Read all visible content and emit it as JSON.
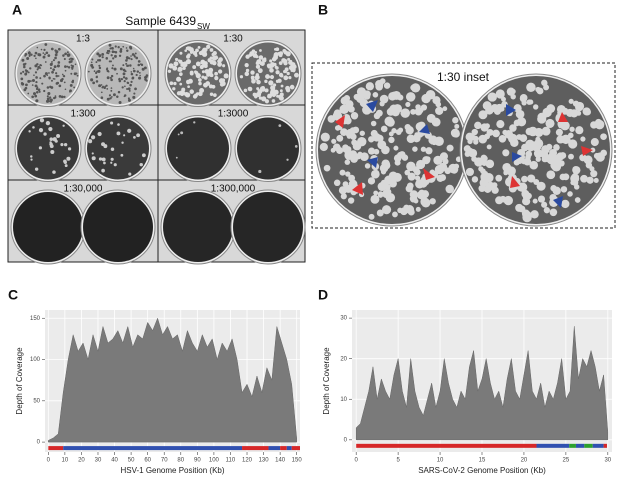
{
  "panel_labels": {
    "a": "A",
    "b": "B",
    "c": "C",
    "d": "D"
  },
  "panel_a": {
    "title": "Sample 6439",
    "title_subscript": "SW",
    "dilutions": [
      "1:3",
      "1:30",
      "1:300",
      "1:3000",
      "1:30,000",
      "1:300,000"
    ]
  },
  "panel_b": {
    "title": "1:30 inset"
  },
  "chart_data": [
    {
      "type": "area",
      "xlabel": "HSV-1 Genome Position (Kb)",
      "ylabel": "Depth of Coverage",
      "color": "#7a7a7a",
      "x": [
        0,
        3,
        6,
        9,
        12,
        15,
        18,
        21,
        24,
        27,
        30,
        33,
        36,
        39,
        42,
        45,
        48,
        51,
        54,
        57,
        60,
        63,
        66,
        69,
        72,
        75,
        78,
        81,
        84,
        87,
        90,
        93,
        96,
        99,
        102,
        105,
        108,
        111,
        114,
        117,
        120,
        123,
        126,
        129,
        132,
        135,
        138,
        141,
        144,
        147,
        150
      ],
      "values": [
        2,
        5,
        10,
        60,
        100,
        130,
        110,
        120,
        100,
        130,
        110,
        140,
        120,
        125,
        135,
        120,
        140,
        115,
        130,
        125,
        145,
        135,
        150,
        130,
        140,
        125,
        130,
        110,
        135,
        120,
        110,
        130,
        115,
        125,
        100,
        120,
        110,
        125,
        100,
        60,
        70,
        55,
        80,
        60,
        90,
        75,
        140,
        120,
        100,
        70,
        5
      ],
      "segments": [
        {
          "start": 0,
          "end": 9,
          "color": "#d62728"
        },
        {
          "start": 9,
          "end": 117,
          "color": "#3050b0"
        },
        {
          "start": 117,
          "end": 133,
          "color": "#d62728"
        },
        {
          "start": 133,
          "end": 140,
          "color": "#3050b0"
        },
        {
          "start": 140,
          "end": 144,
          "color": "#d62728"
        },
        {
          "start": 144,
          "end": 147,
          "color": "#3050b0"
        },
        {
          "start": 147,
          "end": 152,
          "color": "#d62728"
        }
      ],
      "xlim": [
        -2,
        152
      ],
      "ylim": [
        -12,
        160
      ],
      "xticks": [
        0,
        10,
        20,
        30,
        40,
        50,
        60,
        70,
        80,
        90,
        100,
        110,
        120,
        130,
        140,
        150
      ],
      "yticks": [
        0,
        50,
        100,
        150
      ],
      "grid": true
    },
    {
      "type": "area",
      "xlabel": "SARS-CoV-2 Genome Position (Kb)",
      "ylabel": "Depth of Coverage",
      "color": "#7a7a7a",
      "x": [
        0,
        0.5,
        1,
        1.5,
        2,
        2.5,
        3,
        3.5,
        4,
        4.5,
        5,
        5.5,
        6,
        6.5,
        7,
        7.5,
        8,
        8.5,
        9,
        9.5,
        10,
        10.5,
        11,
        11.5,
        12,
        12.5,
        13,
        13.5,
        14,
        14.5,
        15,
        15.5,
        16,
        16.5,
        17,
        17.5,
        18,
        18.5,
        19,
        19.5,
        20,
        20.5,
        21,
        21.5,
        22,
        22.5,
        23,
        23.5,
        24,
        24.5,
        25,
        25.5,
        26,
        26.5,
        27,
        27.5,
        28,
        28.5,
        29,
        29.5,
        30
      ],
      "values": [
        3,
        4,
        8,
        12,
        18,
        10,
        15,
        12,
        10,
        16,
        20,
        12,
        8,
        20,
        12,
        8,
        6,
        10,
        14,
        8,
        12,
        20,
        14,
        10,
        8,
        12,
        10,
        18,
        22,
        12,
        15,
        20,
        14,
        10,
        12,
        8,
        15,
        20,
        12,
        10,
        16,
        22,
        12,
        10,
        14,
        8,
        12,
        10,
        14,
        20,
        10,
        12,
        28,
        15,
        20,
        18,
        22,
        18,
        12,
        16,
        2
      ],
      "segments": [
        {
          "start": 0,
          "end": 21.5,
          "color": "#d62728"
        },
        {
          "start": 21.5,
          "end": 25.4,
          "color": "#3050b0"
        },
        {
          "start": 25.4,
          "end": 26.2,
          "color": "#2ca02c"
        },
        {
          "start": 26.2,
          "end": 27.2,
          "color": "#3050b0"
        },
        {
          "start": 27.2,
          "end": 28.2,
          "color": "#2ca02c"
        },
        {
          "start": 28.2,
          "end": 29.5,
          "color": "#3050b0"
        },
        {
          "start": 29.5,
          "end": 29.9,
          "color": "#d62728"
        }
      ],
      "xlim": [
        -0.5,
        30.5
      ],
      "ylim": [
        -3,
        32
      ],
      "xticks": [
        0,
        5,
        10,
        15,
        20,
        25,
        30
      ],
      "yticks": [
        0,
        10,
        20,
        30
      ],
      "grid": true
    }
  ]
}
